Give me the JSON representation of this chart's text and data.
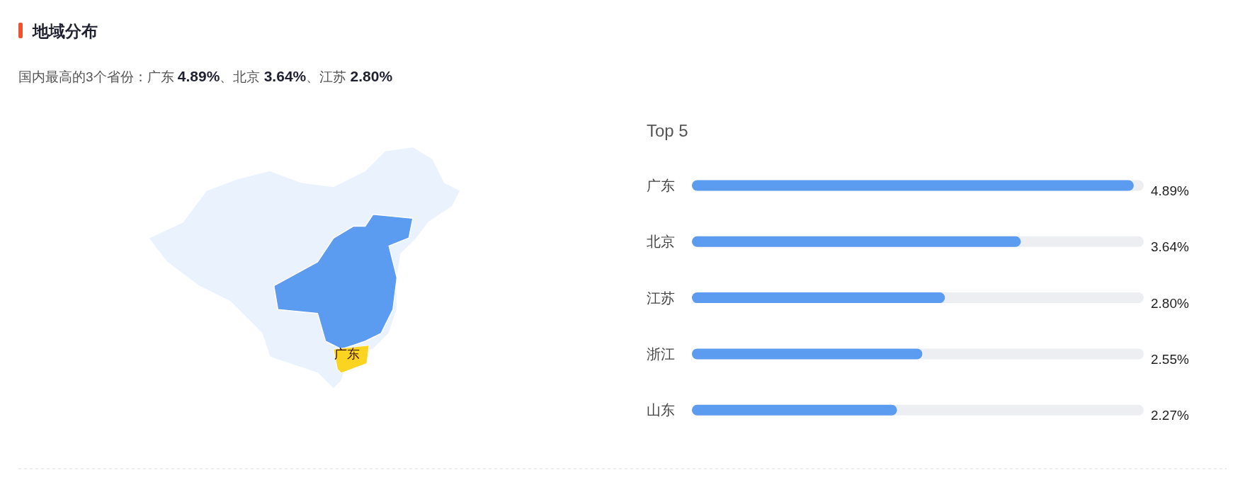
{
  "chart_data": {
    "type": "bar",
    "orientation": "horizontal",
    "title": "地域分布",
    "subtitle": "国内最高的3个省份：广东 4.89%、北京 3.64%、江苏 2.80%",
    "categories": [
      "广东",
      "北京",
      "江苏",
      "浙江",
      "山东"
    ],
    "values": [
      4.89,
      3.64,
      2.8,
      2.55,
      2.27
    ],
    "color": "#5b9bf0",
    "xlim": [
      0,
      5
    ],
    "data_labels": true,
    "value_labels": [
      "4.89%",
      "3.64%",
      "2.80%",
      "2.55%",
      "2.27%"
    ],
    "annotations": [
      "Top 5",
      "广东"
    ]
  }
}
